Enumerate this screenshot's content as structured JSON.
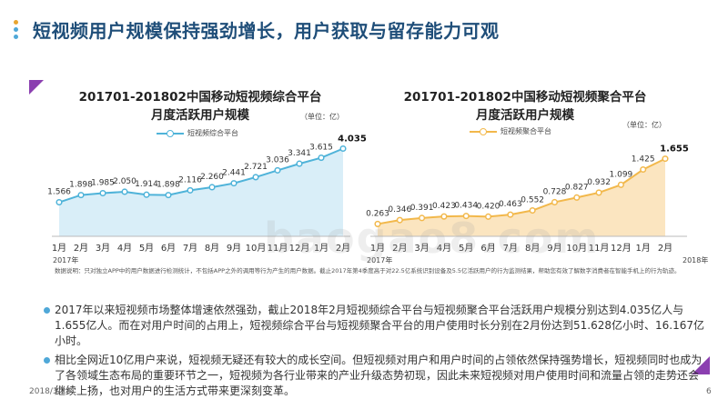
{
  "page": {
    "title": "短视频用户规模保持强劲增长，用户获取与留存能力可观",
    "date": "2018/3/28",
    "page_number": "6",
    "watermark": "baogao8.com",
    "colors": {
      "title": "#1f4e79",
      "chart1": "#4fb3d9",
      "chart2": "#f2b84b",
      "dot1": "#e8a530",
      "dot2": "#4fa8d8",
      "triangle": "#8b3fb0"
    }
  },
  "notes": {
    "data_note": "数据说明：只对独立APP中的用户数据进行检测统计，不包括APP之外的调用等行为产生的用户数据。截止2017年第4季度高于对22.5亿系统识别设备及5.5亿活跃用户的行为监测结果，帮助您有效了解数字消费者在智能手机上的行为轨迹。"
  },
  "bullets": [
    "2017年以来短视频市场整体增速依然强劲，截止2018年2月短视频综合平台与短视频聚合平台活跃用户规模分别达到4.035亿人与1.655亿人。而在对用户时间的占用上，短视频综合平台与短视频聚合平台的用户使用时长分别在2月份达到51.628亿小时、16.167亿小时。",
    "相比全网近10亿用户来说，短视频无疑还有较大的成长空间。但短视频对用户和用户时间的占领依然保持强势增长，短视频同时也成为了各领域生态布局的重要环节之一，短视频为各行业带来的产业升级态势初现，因此未来短视频对用户使用时间和流量占领的走势还会继续上扬，也对用户的生活方式带来更深刻变革。"
  ],
  "chart_data": [
    {
      "type": "area",
      "title": "201701-201802中国移动短视频综合平台月度活跃用户规模",
      "title_lines": [
        "201701-201802中国移动短视频综合平台",
        "月度活跃用户规模"
      ],
      "unit": "（单位：亿）",
      "categories": [
        "1月",
        "2月",
        "3月",
        "4月",
        "5月",
        "6月",
        "7月",
        "8月",
        "9月",
        "10月",
        "11月",
        "12月",
        "1月",
        "2月"
      ],
      "year_start": "2017年",
      "year_end": "",
      "series": [
        {
          "name": "短视频综合平台",
          "values": [
            1.566,
            1.898,
            1.985,
            2.05,
            1.914,
            1.898,
            2.116,
            2.26,
            2.441,
            2.721,
            3.036,
            3.341,
            3.615,
            4.035
          ],
          "labels": [
            "1.566",
            "1.898",
            "1.985",
            "2.050",
            "1.914",
            "1.898",
            "2.116",
            "2.260",
            "2.441",
            "2.721",
            "3.036",
            "3.341",
            "3.615",
            "4.035"
          ]
        }
      ],
      "ylim": [
        0,
        4.6
      ]
    },
    {
      "type": "area",
      "title": "201701-201802中国移动短视频聚合平台月度活跃用户规模",
      "title_lines": [
        "201701-201802中国移动短视频聚合平台",
        "月度活跃用户规模"
      ],
      "unit": "（单位：亿）",
      "categories": [
        "1月",
        "2月",
        "3月",
        "4月",
        "5月",
        "6月",
        "7月",
        "8月",
        "9月",
        "10月",
        "11月",
        "12月",
        "1月",
        "2月"
      ],
      "year_start": "2017年",
      "year_end": "2018年",
      "series": [
        {
          "name": "短视频聚合平台",
          "values": [
            0.263,
            0.346,
            0.391,
            0.423,
            0.434,
            0.42,
            0.463,
            0.552,
            0.728,
            0.827,
            0.932,
            1.099,
            1.425,
            1.655
          ],
          "labels": [
            "0.263",
            "0.346",
            "0.391",
            "0.423",
            "0.434",
            "0.420",
            "0.463",
            "0.552",
            "0.728",
            "0.827",
            "0.932",
            "1.099",
            "1.425",
            "1.655"
          ]
        }
      ],
      "ylim": [
        0,
        1.9
      ]
    }
  ]
}
